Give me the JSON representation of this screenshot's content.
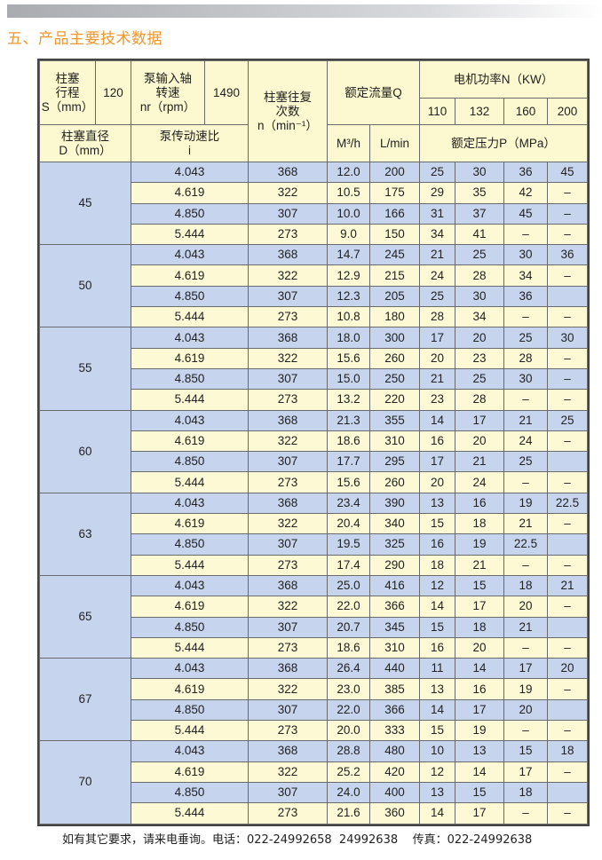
{
  "title": "五、产品主要技术数据",
  "header": {
    "stroke_label": [
      "柱塞",
      "行程",
      "S（mm）"
    ],
    "stroke_value": "120",
    "input_speed_label": [
      "泵输入轴",
      "转速",
      "nr（rpm）"
    ],
    "input_speed_value": "1490",
    "reciprocation_label": [
      "柱塞往复",
      "次数",
      "n（min⁻¹）"
    ],
    "flow_label": "额定流量Q",
    "motor_power_label": "电机功率N（KW）",
    "motor_powers": [
      "110",
      "132",
      "160",
      "200"
    ],
    "diameter_label": [
      "柱塞直径",
      "D（mm）"
    ],
    "ratio_label": [
      "泵传动速比",
      "i"
    ],
    "flow_units": [
      "M³/h",
      "L/min"
    ],
    "pressure_label": "额定压力P（MPa）"
  },
  "groups": [
    {
      "d": "45",
      "rows": [
        [
          "4.043",
          "368",
          "12.0",
          "200",
          "25",
          "30",
          "36",
          "45"
        ],
        [
          "4.619",
          "322",
          "10.5",
          "175",
          "29",
          "35",
          "42",
          "–"
        ],
        [
          "4.850",
          "307",
          "10.0",
          "166",
          "31",
          "37",
          "45",
          "–"
        ],
        [
          "5.444",
          "273",
          "9.0",
          "150",
          "34",
          "41",
          "–",
          "–"
        ]
      ]
    },
    {
      "d": "50",
      "rows": [
        [
          "4.043",
          "368",
          "14.7",
          "245",
          "21",
          "25",
          "30",
          "36"
        ],
        [
          "4.619",
          "322",
          "12.9",
          "215",
          "24",
          "28",
          "34",
          "–"
        ],
        [
          "4.850",
          "307",
          "12.3",
          "205",
          "25",
          "30",
          "36",
          ""
        ],
        [
          "5.444",
          "273",
          "10.8",
          "180",
          "28",
          "34",
          "–",
          "–"
        ]
      ]
    },
    {
      "d": "55",
      "rows": [
        [
          "4.043",
          "368",
          "18.0",
          "300",
          "17",
          "20",
          "25",
          "30"
        ],
        [
          "4.619",
          "322",
          "15.6",
          "260",
          "20",
          "23",
          "28",
          "–"
        ],
        [
          "4.850",
          "307",
          "15.0",
          "250",
          "21",
          "25",
          "30",
          "–"
        ],
        [
          "5.444",
          "273",
          "13.2",
          "220",
          "23",
          "28",
          "–",
          "–"
        ]
      ]
    },
    {
      "d": "60",
      "rows": [
        [
          "4.043",
          "368",
          "21.3",
          "355",
          "14",
          "17",
          "21",
          "25"
        ],
        [
          "4.619",
          "322",
          "18.6",
          "310",
          "16",
          "20",
          "24",
          "–"
        ],
        [
          "4.850",
          "307",
          "17.7",
          "295",
          "17",
          "21",
          "25",
          ""
        ],
        [
          "5.444",
          "273",
          "15.6",
          "260",
          "20",
          "24",
          "–",
          "–"
        ]
      ]
    },
    {
      "d": "63",
      "rows": [
        [
          "4.043",
          "368",
          "23.4",
          "390",
          "13",
          "16",
          "19",
          "22.5"
        ],
        [
          "4.619",
          "322",
          "20.4",
          "340",
          "15",
          "18",
          "21",
          "–"
        ],
        [
          "4.850",
          "307",
          "19.5",
          "325",
          "16",
          "19",
          "22.5",
          ""
        ],
        [
          "5.444",
          "273",
          "17.4",
          "290",
          "18",
          "21",
          "–",
          "–"
        ]
      ]
    },
    {
      "d": "65",
      "rows": [
        [
          "4.043",
          "368",
          "25.0",
          "416",
          "12",
          "15",
          "18",
          "21"
        ],
        [
          "4.619",
          "322",
          "22.0",
          "366",
          "14",
          "17",
          "20",
          "–"
        ],
        [
          "4.850",
          "307",
          "20.7",
          "345",
          "15",
          "18",
          "21",
          ""
        ],
        [
          "5.444",
          "273",
          "18.6",
          "310",
          "16",
          "20",
          "–",
          "–"
        ]
      ]
    },
    {
      "d": "67",
      "rows": [
        [
          "4.043",
          "368",
          "26.4",
          "440",
          "11",
          "14",
          "17",
          "20"
        ],
        [
          "4.619",
          "322",
          "23.0",
          "385",
          "13",
          "16",
          "19",
          "–"
        ],
        [
          "4.850",
          "307",
          "22.0",
          "366",
          "14",
          "17",
          "20",
          ""
        ],
        [
          "5.444",
          "273",
          "20.0",
          "333",
          "15",
          "19",
          "–",
          "–"
        ]
      ]
    },
    {
      "d": "70",
      "rows": [
        [
          "4.043",
          "368",
          "28.8",
          "480",
          "10",
          "13",
          "15",
          "18"
        ],
        [
          "4.619",
          "322",
          "25.2",
          "420",
          "12",
          "14",
          "17",
          "–"
        ],
        [
          "4.850",
          "307",
          "24.0",
          "400",
          "13",
          "15",
          "18",
          ""
        ],
        [
          "5.444",
          "273",
          "21.6",
          "360",
          "14",
          "17",
          "–",
          "–"
        ]
      ]
    }
  ],
  "footer": "如有其它要求，请来电垂询。电话：022-24992658  24992638    传真：022-24992638",
  "colors": {
    "title": "#f0962a",
    "header_bg": "#fcf8cf",
    "row_blue": "#c6d4ee",
    "row_yellow": "#fdf9d4"
  }
}
